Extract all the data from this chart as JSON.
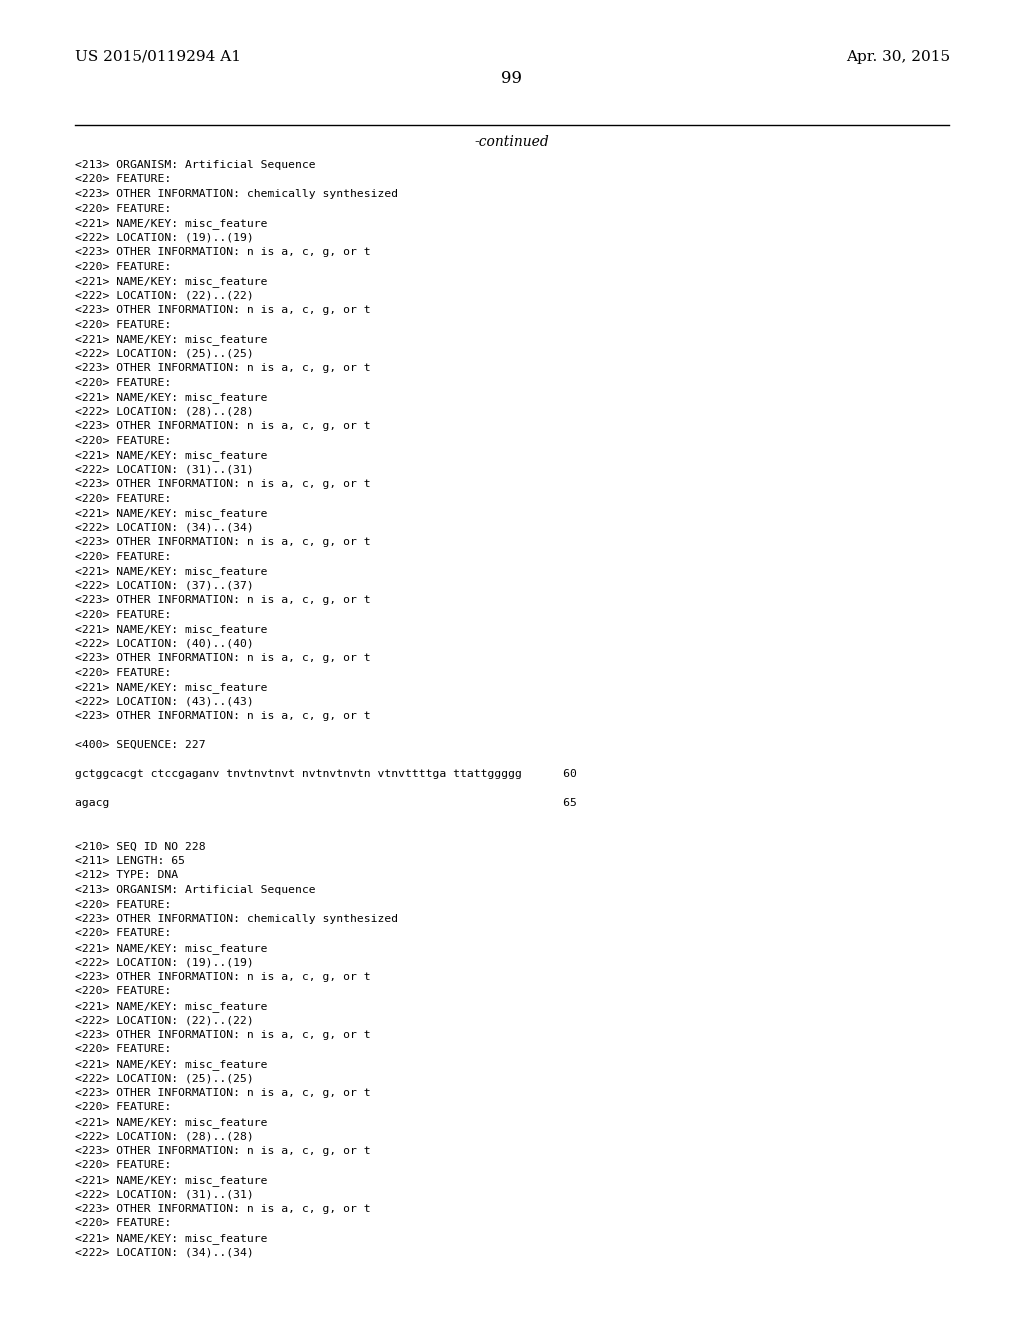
{
  "header_left": "US 2015/0119294 A1",
  "header_right": "Apr. 30, 2015",
  "page_number": "99",
  "continued_text": "-continued",
  "background_color": "#ffffff",
  "text_color": "#000000",
  "lines": [
    "<213> ORGANISM: Artificial Sequence",
    "<220> FEATURE:",
    "<223> OTHER INFORMATION: chemically synthesized",
    "<220> FEATURE:",
    "<221> NAME/KEY: misc_feature",
    "<222> LOCATION: (19)..(19)",
    "<223> OTHER INFORMATION: n is a, c, g, or t",
    "<220> FEATURE:",
    "<221> NAME/KEY: misc_feature",
    "<222> LOCATION: (22)..(22)",
    "<223> OTHER INFORMATION: n is a, c, g, or t",
    "<220> FEATURE:",
    "<221> NAME/KEY: misc_feature",
    "<222> LOCATION: (25)..(25)",
    "<223> OTHER INFORMATION: n is a, c, g, or t",
    "<220> FEATURE:",
    "<221> NAME/KEY: misc_feature",
    "<222> LOCATION: (28)..(28)",
    "<223> OTHER INFORMATION: n is a, c, g, or t",
    "<220> FEATURE:",
    "<221> NAME/KEY: misc_feature",
    "<222> LOCATION: (31)..(31)",
    "<223> OTHER INFORMATION: n is a, c, g, or t",
    "<220> FEATURE:",
    "<221> NAME/KEY: misc_feature",
    "<222> LOCATION: (34)..(34)",
    "<223> OTHER INFORMATION: n is a, c, g, or t",
    "<220> FEATURE:",
    "<221> NAME/KEY: misc_feature",
    "<222> LOCATION: (37)..(37)",
    "<223> OTHER INFORMATION: n is a, c, g, or t",
    "<220> FEATURE:",
    "<221> NAME/KEY: misc_feature",
    "<222> LOCATION: (40)..(40)",
    "<223> OTHER INFORMATION: n is a, c, g, or t",
    "<220> FEATURE:",
    "<221> NAME/KEY: misc_feature",
    "<222> LOCATION: (43)..(43)",
    "<223> OTHER INFORMATION: n is a, c, g, or t",
    "",
    "<400> SEQUENCE: 227",
    "",
    "gctggcacgt ctccgaganv tnvtnvtnvt nvtnvtnvtn vtnvttttga ttattggggg      60",
    "",
    "agacg                                                                  65",
    "",
    "",
    "<210> SEQ ID NO 228",
    "<211> LENGTH: 65",
    "<212> TYPE: DNA",
    "<213> ORGANISM: Artificial Sequence",
    "<220> FEATURE:",
    "<223> OTHER INFORMATION: chemically synthesized",
    "<220> FEATURE:",
    "<221> NAME/KEY: misc_feature",
    "<222> LOCATION: (19)..(19)",
    "<223> OTHER INFORMATION: n is a, c, g, or t",
    "<220> FEATURE:",
    "<221> NAME/KEY: misc_feature",
    "<222> LOCATION: (22)..(22)",
    "<223> OTHER INFORMATION: n is a, c, g, or t",
    "<220> FEATURE:",
    "<221> NAME/KEY: misc_feature",
    "<222> LOCATION: (25)..(25)",
    "<223> OTHER INFORMATION: n is a, c, g, or t",
    "<220> FEATURE:",
    "<221> NAME/KEY: misc_feature",
    "<222> LOCATION: (28)..(28)",
    "<223> OTHER INFORMATION: n is a, c, g, or t",
    "<220> FEATURE:",
    "<221> NAME/KEY: misc_feature",
    "<222> LOCATION: (31)..(31)",
    "<223> OTHER INFORMATION: n is a, c, g, or t",
    "<220> FEATURE:",
    "<221> NAME/KEY: misc_feature",
    "<222> LOCATION: (34)..(34)"
  ],
  "seq_line1": "gctggcacgt ctccgaganv tnvtnvtnvt nvtnvtnvtn vtnvttttga ttattggggg      60",
  "seq_line2": "agacg                                                                  65"
}
